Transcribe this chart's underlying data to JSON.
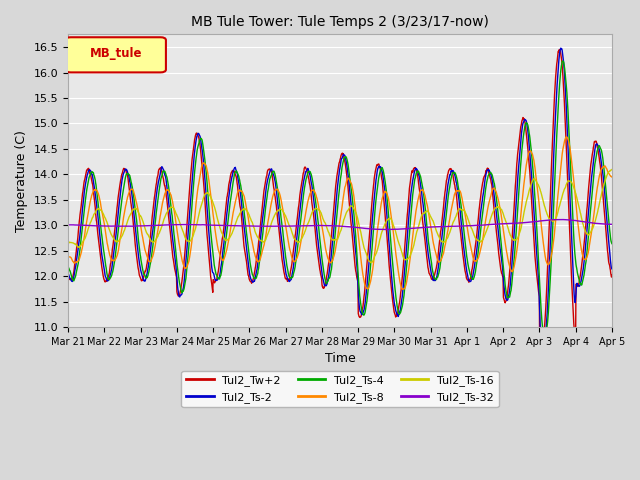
{
  "title": "MB Tule Tower: Tule Temps 2 (3/23/17-now)",
  "xlabel": "Time",
  "ylabel": "Temperature (C)",
  "ylim": [
    11.0,
    16.75
  ],
  "yticks": [
    11.0,
    11.5,
    12.0,
    12.5,
    13.0,
    13.5,
    14.0,
    14.5,
    15.0,
    15.5,
    16.0,
    16.5
  ],
  "background_color": "#d8d8d8",
  "plot_background": "#e8e8e8",
  "grid_color": "white",
  "legend_label": "MB_tule",
  "legend_bg": "#ffff99",
  "legend_border": "#cc0000",
  "series_labels": [
    "Tul2_Tw+2",
    "Tul2_Ts-2",
    "Tul2_Ts-4",
    "Tul2_Ts-8",
    "Tul2_Ts-16",
    "Tul2_Ts-32"
  ],
  "series_colors": [
    "#cc0000",
    "#0000cc",
    "#00aa00",
    "#ff8800",
    "#cccc00",
    "#8800cc"
  ],
  "line_width": 1.0,
  "xtick_labels": [
    "Mar 21",
    "Mar 22",
    "Mar 23",
    "Mar 24",
    "Mar 25",
    "Mar 26",
    "Mar 27",
    "Mar 28",
    "Mar 29",
    "Mar 30",
    "Mar 31",
    "Apr 1",
    "Apr 2",
    "Apr 3",
    "Apr 4",
    "Apr 5"
  ]
}
